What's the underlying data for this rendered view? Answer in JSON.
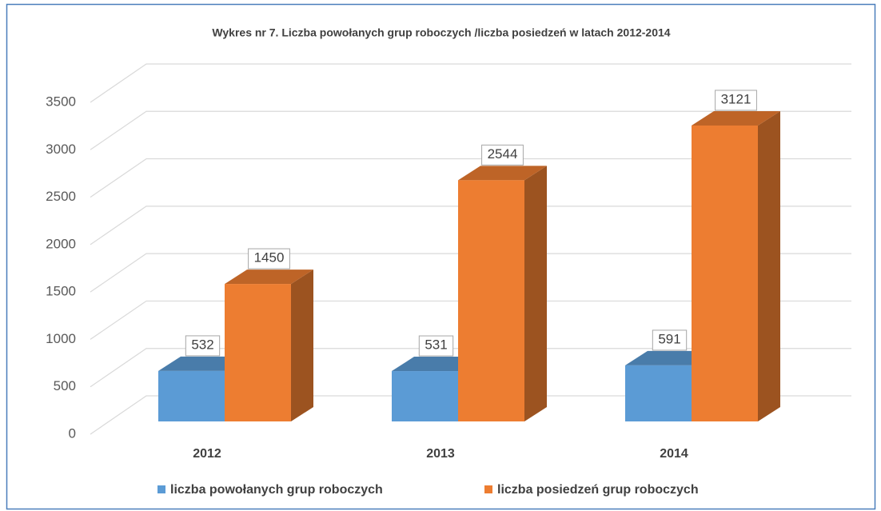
{
  "chart_data": {
    "type": "bar3d",
    "title": "Wykres nr 7. Liczba powołanych grup roboczych /liczba posiedzeń w latach 2012-2014",
    "categories": [
      "2012",
      "2013",
      "2014"
    ],
    "series": [
      {
        "name": "liczba powołanych grup roboczych",
        "color": "#5b9bd5",
        "values": [
          532,
          531,
          591
        ]
      },
      {
        "name": "liczba posiedzeń grup roboczych",
        "color": "#ed7d31",
        "values": [
          1450,
          2544,
          3121
        ]
      }
    ],
    "ylim": [
      0,
      3500
    ],
    "yticks": [
      0,
      500,
      1000,
      1500,
      2000,
      2500,
      3000,
      3500
    ],
    "grid": true,
    "legend": "bottom"
  }
}
